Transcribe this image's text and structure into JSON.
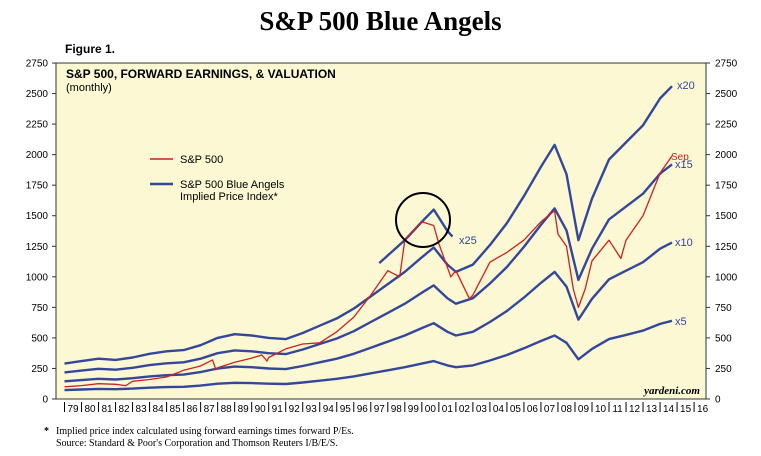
{
  "page": {
    "title": "S&P 500 Blue Angels",
    "figure_label": "Figure 1.",
    "footnote_marker": "*",
    "footnote_1": "Implied price index calculated using forward earnings times forward P/Es.",
    "footnote_2": "Source: Standard & Poor's Corporation and Thomson Reuters I/B/E/S."
  },
  "colors": {
    "plot_bg": "#fbf8d3",
    "blue": "#34479a",
    "red": "#d02020",
    "frame": "#333333"
  },
  "chart_data": {
    "type": "line",
    "title": "S&P 500, FORWARD EARNINGS, & VALUATION",
    "subtitle": "(monthly)",
    "watermark": "yardeni.com",
    "xlim": [
      1978.5,
      2016.7
    ],
    "ylim": [
      0,
      2750
    ],
    "y_ticks": [
      0,
      250,
      500,
      750,
      1000,
      1250,
      1500,
      1750,
      2000,
      2250,
      2500,
      2750
    ],
    "x_tick_labels": [
      "79",
      "80",
      "81",
      "82",
      "83",
      "84",
      "85",
      "86",
      "87",
      "88",
      "89",
      "90",
      "91",
      "92",
      "93",
      "94",
      "95",
      "96",
      "97",
      "98",
      "99",
      "00",
      "01",
      "02",
      "03",
      "04",
      "05",
      "06",
      "07",
      "08",
      "09",
      "10",
      "11",
      "12",
      "13",
      "14",
      "15",
      "16"
    ],
    "legend": [
      {
        "label": "S&P 500",
        "color": "#d02020"
      },
      {
        "label": "S&P 500 Blue Angels",
        "label_line2": "Implied Price Index*",
        "color": "#34479a"
      }
    ],
    "series_labels": {
      "x20": "x20",
      "x25": "x25",
      "x15": "x15",
      "x10": "x10",
      "x5": "x5",
      "sep": "Sep"
    },
    "forward_earnings_x": [
      1979,
      1980,
      1981,
      1982,
      1983,
      1984,
      1985,
      1986,
      1987,
      1988,
      1989,
      1990,
      1991,
      1992,
      1993,
      1994,
      1995,
      1996,
      1997,
      1998,
      1999,
      2000,
      2000.7,
      2001.5,
      2002,
      2003,
      2004,
      2005,
      2006,
      2007,
      2007.8,
      2008.5,
      2009.2,
      2010,
      2011,
      2012,
      2013,
      2014,
      2014.7
    ],
    "forward_earnings": [
      14.5,
      15.5,
      16.5,
      16.0,
      17.0,
      18.5,
      19.5,
      20.0,
      22.0,
      25.0,
      26.5,
      26.0,
      25.0,
      24.5,
      27.0,
      30.0,
      33.0,
      37.0,
      42.0,
      47.0,
      52.0,
      58.0,
      62.0,
      55.0,
      52.0,
      55.0,
      63.0,
      72.0,
      83.0,
      95.0,
      104.0,
      92.0,
      65.0,
      82.0,
      98.0,
      105.0,
      112.0,
      123.0,
      128.0
    ],
    "multiples": [
      5,
      10,
      15,
      20
    ],
    "x25_segment": {
      "from": 1997.5,
      "to": 2001.8,
      "multiple": 25
    },
    "sp500_x": [
      1979,
      1980,
      1981,
      1982,
      1982.6,
      1983,
      1984,
      1985,
      1986,
      1987,
      1987.7,
      1987.9,
      1988,
      1989,
      1990,
      1990.6,
      1990.9,
      1991,
      1992,
      1993,
      1994,
      1995,
      1996,
      1997,
      1998,
      1998.7,
      1999,
      2000,
      2000.7,
      2001,
      2001.7,
      2002,
      2002.8,
      2003,
      2004,
      2005,
      2006,
      2007,
      2007.8,
      2008,
      2008.5,
      2008.9,
      2009.2,
      2009.6,
      2010,
      2011,
      2011.7,
      2012,
      2013,
      2014,
      2014.7
    ],
    "sp500": [
      100,
      110,
      125,
      120,
      110,
      145,
      160,
      180,
      235,
      270,
      320,
      240,
      255,
      300,
      335,
      360,
      310,
      340,
      410,
      450,
      460,
      550,
      670,
      850,
      1050,
      1000,
      1300,
      1450,
      1420,
      1270,
      1000,
      1050,
      820,
      850,
      1120,
      1200,
      1300,
      1450,
      1540,
      1350,
      1250,
      900,
      750,
      900,
      1130,
      1300,
      1150,
      1300,
      1500,
      1850,
      1990
    ]
  }
}
